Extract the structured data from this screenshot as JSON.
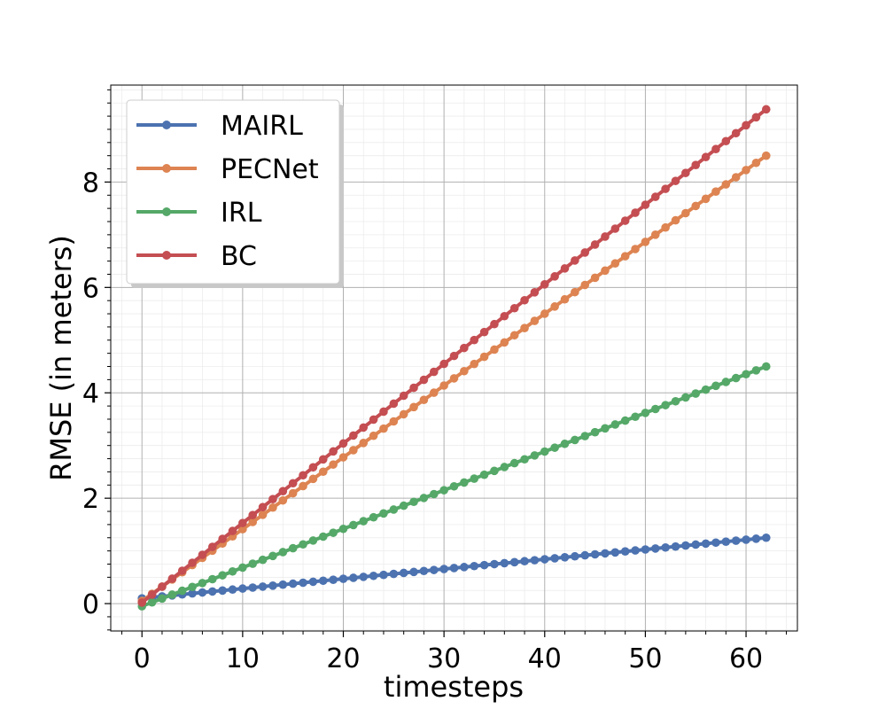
{
  "chart_data": {
    "type": "line",
    "title": "",
    "xlabel": "timesteps",
    "ylabel": "RMSE (in meters)",
    "xlim": [
      -3.1,
      65.1
    ],
    "ylim": [
      -0.52,
      9.84
    ],
    "xticks": [
      0,
      10,
      20,
      30,
      40,
      50,
      60
    ],
    "yticks": [
      0,
      2,
      4,
      6,
      8
    ],
    "grid": true,
    "legend_position": "top-left",
    "x": {
      "start": 0,
      "end": 62,
      "step": 1
    },
    "series": [
      {
        "name": "MAIRL",
        "color": "#4c72b0",
        "start": 0.1,
        "end": 1.25
      },
      {
        "name": "PECNet",
        "color": "#dd8452",
        "start": 0.05,
        "end": 8.5
      },
      {
        "name": "IRL",
        "color": "#55a868",
        "start": -0.05,
        "end": 4.5
      },
      {
        "name": "BC",
        "color": "#c44e52",
        "start": 0.02,
        "end": 9.38
      }
    ]
  }
}
